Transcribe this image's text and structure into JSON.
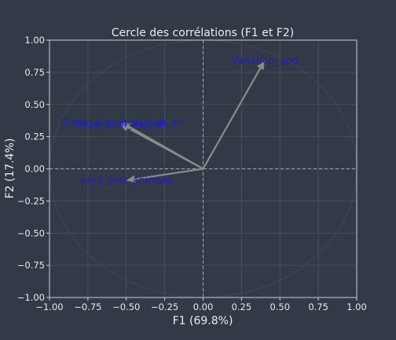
{
  "chart_data": {
    "type": "scatter",
    "title": "Cercle des corrélations (F1 et F2)",
    "xlabel": "F1 (69.8%)",
    "ylabel": "F2 (17.4%)",
    "xlim": [
      -1.0,
      1.0
    ],
    "ylim": [
      -1.0,
      1.0
    ],
    "grid": true,
    "x_ticks": [
      "−1.00",
      "−0.75",
      "−0.50",
      "−0.25",
      "0.00",
      "0.25",
      "0.50",
      "0.75",
      "1.00"
    ],
    "y_ticks": [
      "−1.00",
      "−0.75",
      "−0.50",
      "−0.25",
      "0.00",
      "0.25",
      "0.50",
      "0.75",
      "1.00"
    ],
    "vectors": [
      {
        "label": "Variation_pop",
        "x": 0.4,
        "y": 0.84
      },
      {
        "label": "Dispo_alim_local_hab_an",
        "x": -0.53,
        "y": 0.36
      },
      {
        "label": "Dispo_alim_hab_an",
        "x": -0.54,
        "y": 0.35
      },
      {
        "label": "prop_prot_animale",
        "x": -0.5,
        "y": -0.09
      }
    ],
    "colors": {
      "background": "#333a47",
      "grid": "#4a5363",
      "arrow": "#8a8a8a",
      "label": "#2020b8",
      "circle": "#3e4858"
    }
  }
}
